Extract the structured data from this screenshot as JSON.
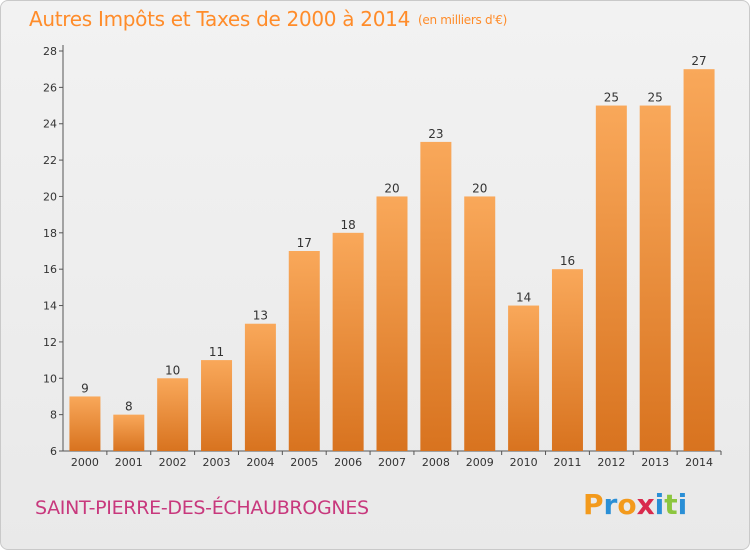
{
  "header": {
    "title": "Autres Impôts et Taxes de 2000 à 2014",
    "unit": "(en milliers d'€)"
  },
  "footer": {
    "commune": "SAINT-PIERRE-DES-ÉCHAUBROGNES",
    "logo_letters": [
      "P",
      "r",
      "o",
      "x",
      "i",
      "t",
      "i"
    ],
    "logo_colors": [
      "#f39a1c",
      "#2a8fd6",
      "#f39a1c",
      "#d92a4d",
      "#2a8fd6",
      "#8cc63f",
      "#2a8fd6"
    ]
  },
  "colors": {
    "title": "#ff8c2a",
    "commune": "#c8387d",
    "bar_top": "#f9a85a",
    "bar_bottom": "#d8731f"
  },
  "chart_data": {
    "type": "bar",
    "title": "Autres Impôts et Taxes de 2000 à 2014",
    "ylabel": "",
    "xlabel": "",
    "categories": [
      "2000",
      "2001",
      "2002",
      "2003",
      "2004",
      "2005",
      "2006",
      "2007",
      "2008",
      "2009",
      "2010",
      "2011",
      "2012",
      "2013",
      "2014"
    ],
    "values": [
      9,
      8,
      10,
      11,
      13,
      17,
      18,
      20,
      23,
      20,
      14,
      16,
      25,
      25,
      27
    ],
    "ylim": [
      6,
      28
    ],
    "yticks": [
      6,
      8,
      10,
      12,
      14,
      16,
      18,
      20,
      22,
      24,
      26,
      28
    ],
    "grid": false
  }
}
